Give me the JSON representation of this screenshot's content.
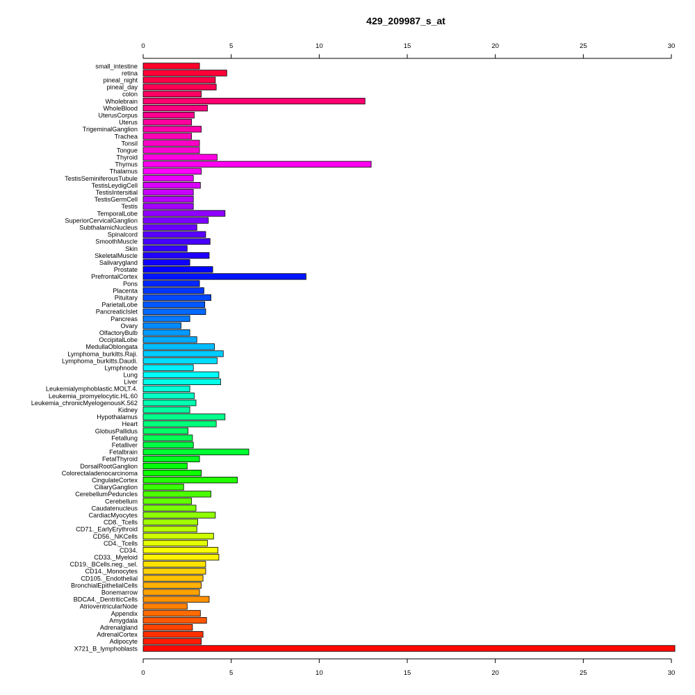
{
  "chart_data": {
    "type": "bar",
    "orientation": "horizontal",
    "title": "429_209987_s_at",
    "xlabel": "",
    "ylabel": "",
    "xlim": [
      0,
      30
    ],
    "x_ticks": [
      0,
      5,
      10,
      15,
      20,
      25,
      30
    ],
    "x_tick_labels": [
      "0",
      "5",
      "10",
      "15",
      "20",
      "25",
      "30"
    ],
    "axes": "top-and-bottom",
    "grid": false,
    "legend": "none",
    "color_scheme": "rainbow gradient from red (top) through magenta, blue, cyan, green, yellow, orange back to red (bottom)",
    "categories": [
      "small_intestine",
      "retina",
      "pineal_night",
      "pineal_day",
      "colon",
      "Wholebrain",
      "WholeBlood",
      "UterusCorpus",
      "Uterus",
      "TrigeminalGanglion",
      "Trachea",
      "Tonsil",
      "Tongue",
      "Thyroid",
      "Thymus",
      "Thalamus",
      "TestisSeminiferousTubule",
      "TestisLeydigCell",
      "TestisIntersitial",
      "TestisGermCell",
      "Testis",
      "TemporalLobe",
      "SuperiorCervicalGanglion",
      "SubthalamicNucleus",
      "Spinalcord",
      "SmoothMuscle",
      "Skin",
      "SkeletalMuscle",
      "Salivarygland",
      "Prostate",
      "PrefrontalCortex",
      "Pons",
      "Placenta",
      "Pituitary",
      "ParietalLobe",
      "PancreaticIslet",
      "Pancreas",
      "Ovary",
      "OlfactoryBulb",
      "OccipitalLobe",
      "MedullaOblongata",
      "Lymphoma_burkitts.Raji.",
      "Lymphoma_burkitts.Daudi.",
      "Lymphnode",
      "Lung",
      "Liver",
      "Leukemialymphoblastic.MOLT.4.",
      "Leukemia_promyelocytic.HL.60",
      "Leukemia_chronicMyelogenousK.562",
      "Kidney",
      "Hypothalamus",
      "Heart",
      "GlobusPallidus",
      "Fetallung",
      "Fetalliver",
      "Fetalbrain",
      "FetalThyroid",
      "DorsalRootGanglion",
      "Colorectaladenocarcinoma",
      "CingulateCortex",
      "CiliaryGanglion",
      "CerebellumPeduncles",
      "Cerebellum",
      "Caudatenucleus",
      "CardiacMyocytes",
      "CD8._Tcells",
      "CD71._EarlyErythroid",
      "CD56._NKCells",
      "CD4._Tcells",
      "CD34.",
      "CD33._Myeloid",
      "CD19._BCells.neg._sel.",
      "CD14._Monocytes",
      "CD105._Endothelial",
      "BronchialEpithelialCells",
      "Bonemarrow",
      "BDCA4._DentriticCells",
      "AtrioventricularNode",
      "Appendix",
      "Amygdala",
      "Adrenalgland",
      "AdrenalCortex",
      "Adipocyte",
      "X721_B_lymphoblasts"
    ],
    "values": [
      3.2,
      4.75,
      4.1,
      4.15,
      3.3,
      12.6,
      3.65,
      2.9,
      2.75,
      3.3,
      2.75,
      3.2,
      3.2,
      4.2,
      12.95,
      3.3,
      2.85,
      3.25,
      2.85,
      2.85,
      2.85,
      4.65,
      3.7,
      3.05,
      3.55,
      3.8,
      2.5,
      3.75,
      2.65,
      3.95,
      9.25,
      3.2,
      3.45,
      3.85,
      3.5,
      3.55,
      2.65,
      2.15,
      2.65,
      3.05,
      4.05,
      4.55,
      4.2,
      2.85,
      4.3,
      4.4,
      2.65,
      2.9,
      3.0,
      2.65,
      4.65,
      4.15,
      2.55,
      2.8,
      2.85,
      6.0,
      3.2,
      2.5,
      3.3,
      5.35,
      2.3,
      3.85,
      2.75,
      3.0,
      4.1,
      3.1,
      3.05,
      4.0,
      3.65,
      4.25,
      4.3,
      3.55,
      3.55,
      3.4,
      3.3,
      3.2,
      3.75,
      2.5,
      3.25,
      3.6,
      2.8,
      3.4,
      3.3,
      30.2
    ]
  }
}
